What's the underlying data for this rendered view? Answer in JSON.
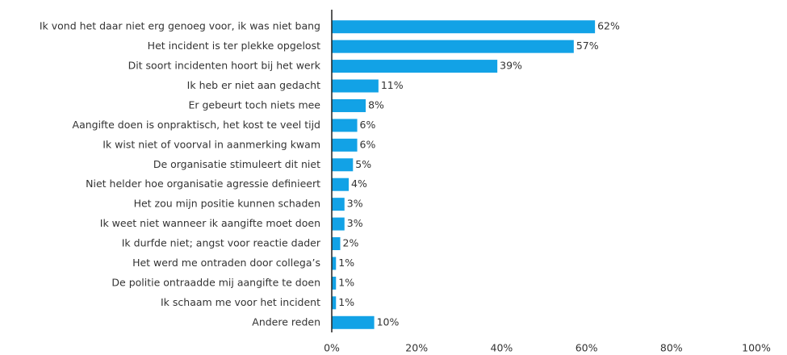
{
  "chart_data": {
    "type": "hbar",
    "categories": [
      "Ik vond het daar niet erg genoeg voor, ik was niet bang",
      "Het incident is ter plekke opgelost",
      "Dit soort incidenten hoort bij het werk",
      "Ik heb er niet aan gedacht",
      "Er gebeurt toch niets mee",
      "Aangifte doen is onpraktisch, het kost te veel tijd",
      "Ik wist niet of voorval in aanmerking kwam",
      "De organisatie stimuleert dit niet",
      "Niet helder hoe organisatie agressie definieert",
      "Het zou mijn positie kunnen schaden",
      "Ik weet niet wanneer ik aangifte moet doen",
      "Ik durfde niet; angst voor reactie dader",
      "Het werd me ontraden door collega’s",
      "De politie ontraadde mij aangifte te doen",
      "Ik schaam me voor het incident",
      "Andere reden"
    ],
    "values": [
      62,
      57,
      39,
      11,
      8,
      6,
      6,
      5,
      4,
      3,
      3,
      2,
      1,
      1,
      1,
      10
    ],
    "value_labels": [
      "62%",
      "57%",
      "39%",
      "11%",
      "8%",
      "6%",
      "6%",
      "5%",
      "4%",
      "3%",
      "3%",
      "2%",
      "1%",
      "1%",
      "1%",
      "10%"
    ],
    "color": "#12a2e6",
    "xlim": [
      0,
      100
    ],
    "xticks": [
      {
        "value": 0,
        "label": "0%"
      },
      {
        "value": 20,
        "label": "20%"
      },
      {
        "value": 40,
        "label": "40%"
      },
      {
        "value": 60,
        "label": "60%"
      },
      {
        "value": 80,
        "label": "80%"
      },
      {
        "value": 100,
        "label": "100%"
      }
    ],
    "grid": false
  }
}
